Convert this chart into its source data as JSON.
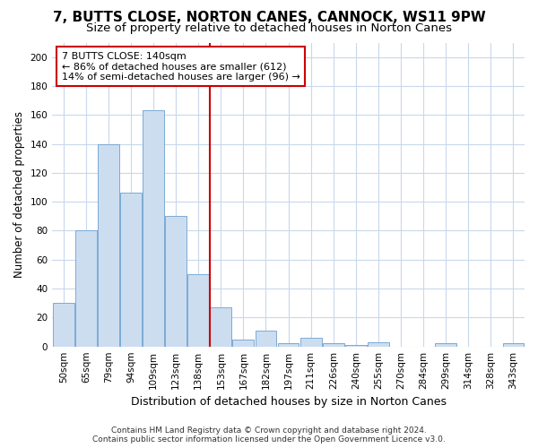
{
  "title": "7, BUTTS CLOSE, NORTON CANES, CANNOCK, WS11 9PW",
  "subtitle": "Size of property relative to detached houses in Norton Canes",
  "xlabel": "Distribution of detached houses by size in Norton Canes",
  "ylabel": "Number of detached properties",
  "footer_line1": "Contains HM Land Registry data © Crown copyright and database right 2024.",
  "footer_line2": "Contains public sector information licensed under the Open Government Licence v3.0.",
  "categories": [
    "50sqm",
    "65sqm",
    "79sqm",
    "94sqm",
    "109sqm",
    "123sqm",
    "138sqm",
    "153sqm",
    "167sqm",
    "182sqm",
    "197sqm",
    "211sqm",
    "226sqm",
    "240sqm",
    "255sqm",
    "270sqm",
    "284sqm",
    "299sqm",
    "314sqm",
    "328sqm",
    "343sqm"
  ],
  "values": [
    30,
    80,
    140,
    106,
    163,
    90,
    50,
    27,
    5,
    11,
    2,
    6,
    2,
    1,
    3,
    0,
    0,
    2,
    0,
    0,
    2
  ],
  "bar_color": "#ccddf0",
  "bar_edge_color": "#7baad4",
  "vline_x": 6.5,
  "vline_color": "#cc0000",
  "annotation_text": "7 BUTTS CLOSE: 140sqm\n← 86% of detached houses are smaller (612)\n14% of semi-detached houses are larger (96) →",
  "annotation_box_facecolor": "#ffffff",
  "annotation_box_edgecolor": "#cc0000",
  "ylim": [
    0,
    210
  ],
  "yticks": [
    0,
    20,
    40,
    60,
    80,
    100,
    120,
    140,
    160,
    180,
    200
  ],
  "grid_color": "#c8d8ec",
  "title_fontsize": 11,
  "subtitle_fontsize": 9.5,
  "xlabel_fontsize": 9,
  "ylabel_fontsize": 8.5,
  "tick_fontsize": 7.5,
  "annotation_fontsize": 8,
  "footer_fontsize": 6.5
}
